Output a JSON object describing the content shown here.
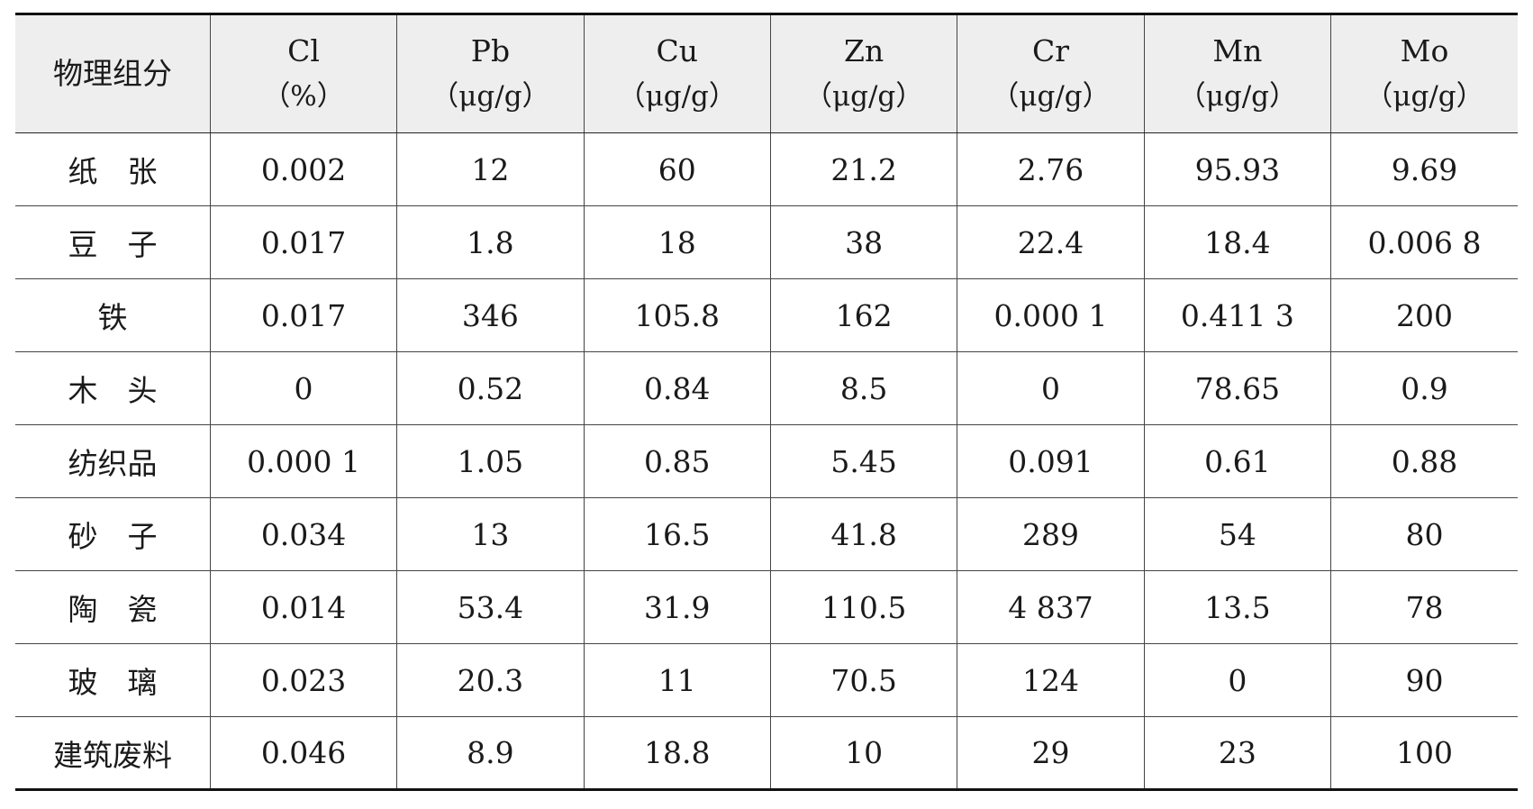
{
  "table": {
    "headers": [
      {
        "name": "物理组分",
        "unit": ""
      },
      {
        "name": "Cl",
        "unit": "（%）"
      },
      {
        "name": "Pb",
        "unit": "（μg/g）"
      },
      {
        "name": "Cu",
        "unit": "（μg/g）"
      },
      {
        "name": "Zn",
        "unit": "（μg/g）"
      },
      {
        "name": "Cr",
        "unit": "（μg/g）"
      },
      {
        "name": "Mn",
        "unit": "（μg/g）"
      },
      {
        "name": "Mo",
        "unit": "（μg/g）"
      }
    ],
    "rows": [
      [
        "纸　张",
        "0.002",
        "12",
        "60",
        "21.2",
        "2.76",
        "95.93",
        "9.69"
      ],
      [
        "豆　子",
        "0.017",
        "1.8",
        "18",
        "38",
        "22.4",
        "18.4",
        "0.006 8"
      ],
      [
        "铁",
        "0.017",
        "346",
        "105.8",
        "162",
        "0.000 1",
        "0.411 3",
        "200"
      ],
      [
        "木　头",
        "0",
        "0.52",
        "0.84",
        "8.5",
        "0",
        "78.65",
        "0.9"
      ],
      [
        "纺织品",
        "0.000 1",
        "1.05",
        "0.85",
        "5.45",
        "0.091",
        "0.61",
        "0.88"
      ],
      [
        "砂　子",
        "0.034",
        "13",
        "16.5",
        "41.8",
        "289",
        "54",
        "80"
      ],
      [
        "陶　瓷",
        "0.014",
        "53.4",
        "31.9",
        "110.5",
        "4 837",
        "13.5",
        "78"
      ],
      [
        "玻　璃",
        "0.023",
        "20.3",
        "11",
        "70.5",
        "124",
        "0",
        "90"
      ],
      [
        "建筑废料",
        "0.046",
        "8.9",
        "18.8",
        "10",
        "29",
        "23",
        "100"
      ]
    ]
  }
}
